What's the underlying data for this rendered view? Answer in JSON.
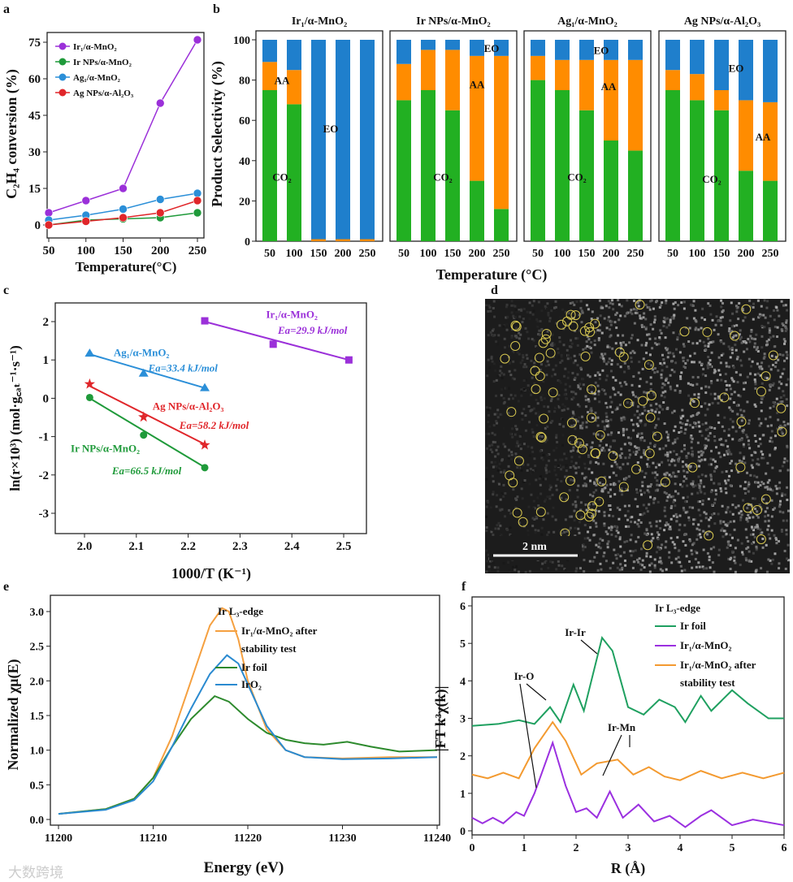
{
  "chart_data": [
    {
      "panel": "a",
      "type": "line",
      "xlabel": "Temperature(°C)",
      "ylabel": "C₂H₄ conversion (%)",
      "xlim": [
        50,
        250
      ],
      "ylim": [
        -4,
        80
      ],
      "xticks": [
        50,
        100,
        150,
        200,
        250
      ],
      "yticks": [
        0,
        15,
        30,
        45,
        60,
        75
      ],
      "legend": "top-left",
      "x": [
        50,
        100,
        150,
        200,
        250
      ],
      "series": [
        {
          "name": "Ir₁/α-MnO₂",
          "color": "#9b30d9",
          "values": [
            5,
            10,
            15,
            50,
            76
          ]
        },
        {
          "name": "Ir NPs/α-MnO₂",
          "color": "#1f9a3a",
          "values": [
            0,
            2,
            2.5,
            3,
            5
          ]
        },
        {
          "name": "Ag₁/α-MnO₂",
          "color": "#2b8fd8",
          "values": [
            2,
            4,
            6.5,
            10.5,
            13
          ]
        },
        {
          "name": "Ag NPs/α-Al₂O₃",
          "color": "#e0262a",
          "values": [
            0,
            1.5,
            3,
            5,
            10
          ]
        }
      ]
    },
    {
      "panel": "b",
      "type": "bar",
      "stacked": true,
      "xlabel": "Temperature (°C)",
      "ylabel": "Product Selectivity (%)",
      "ylim": [
        0,
        100
      ],
      "yticks": [
        0,
        20,
        40,
        60,
        80,
        100
      ],
      "categories": [
        "50",
        "100",
        "150",
        "200",
        "250"
      ],
      "stack_colors": {
        "CO2": "#22b022",
        "AA": "#ff8c00",
        "EO": "#1f7fcc"
      },
      "subplots": [
        {
          "title": "Ir₁/α-MnO₂",
          "CO2": [
            75,
            68,
            0,
            0,
            0
          ],
          "AA": [
            14,
            17,
            1,
            1,
            1
          ],
          "EO": [
            11,
            15,
            99,
            99,
            99
          ],
          "labels": [
            {
              "text": "AA",
              "x": 0.5,
              "y": 80
            },
            {
              "text": "EO",
              "x": 2.5,
              "y": 56
            },
            {
              "text": "CO₂",
              "x": 0.5,
              "y": 32
            }
          ]
        },
        {
          "title": "Ir NPs/α-MnO₂",
          "CO2": [
            70,
            75,
            65,
            30,
            16
          ],
          "AA": [
            18,
            20,
            30,
            62,
            76
          ],
          "EO": [
            12,
            5,
            5,
            8,
            8
          ],
          "labels": [
            {
              "text": "EO",
              "x": 3.6,
              "y": 96
            },
            {
              "text": "AA",
              "x": 3,
              "y": 78
            },
            {
              "text": "CO₂",
              "x": 1.6,
              "y": 32
            }
          ]
        },
        {
          "title": "Ag₁/α-MnO₂",
          "CO2": [
            80,
            75,
            65,
            50,
            45
          ],
          "AA": [
            12,
            15,
            25,
            40,
            45
          ],
          "EO": [
            8,
            10,
            10,
            10,
            10
          ],
          "labels": [
            {
              "text": "EO",
              "x": 2.6,
              "y": 95
            },
            {
              "text": "AA",
              "x": 2.9,
              "y": 77
            },
            {
              "text": "CO₂",
              "x": 1.6,
              "y": 32
            }
          ]
        },
        {
          "title": "Ag NPs/α-Al₂O₃",
          "CO2": [
            75,
            70,
            65,
            35,
            30
          ],
          "AA": [
            10,
            13,
            10,
            35,
            39
          ],
          "EO": [
            15,
            17,
            25,
            30,
            31
          ],
          "labels": [
            {
              "text": "EO",
              "x": 2.6,
              "y": 86
            },
            {
              "text": "AA",
              "x": 3.7,
              "y": 52
            },
            {
              "text": "CO₂",
              "x": 1.6,
              "y": 31
            }
          ]
        }
      ]
    },
    {
      "panel": "c",
      "type": "scatter",
      "xlabel": "1000/T (K⁻¹)",
      "ylabel": "ln(r×10³) (mol·g꜀ₐₜ⁻¹·s⁻¹)",
      "xlim": [
        1.945,
        2.545
      ],
      "ylim": [
        -3.5,
        2.5
      ],
      "xticks": [
        2.0,
        2.1,
        2.2,
        2.3,
        2.4,
        2.5
      ],
      "yticks": [
        -3,
        -2,
        -1,
        0,
        1,
        2
      ],
      "series": [
        {
          "name": "Ir₁/α-MnO₂",
          "ea": "Ea=29.9 kJ/mol",
          "color": "#9b30d9",
          "marker": "square",
          "points": [
            [
              2.232,
              2.02
            ],
            [
              2.364,
              1.41
            ],
            [
              2.51,
              1.0
            ]
          ],
          "fit": [
            [
              2.232,
              2.0
            ],
            [
              2.51,
              1.0
            ]
          ],
          "label_at": [
            2.4,
            2.1
          ],
          "ea_at": [
            2.44,
            1.68
          ]
        },
        {
          "name": "Ag₁/α-MnO₂",
          "ea": "Ea=33.4 kJ/mol",
          "color": "#2b8fd8",
          "marker": "triangle",
          "points": [
            [
              2.01,
              1.17
            ],
            [
              2.114,
              0.65
            ],
            [
              2.232,
              0.27
            ]
          ],
          "fit": [
            [
              2.01,
              1.15
            ],
            [
              2.232,
              0.27
            ]
          ],
          "label_at": [
            2.11,
            1.1
          ],
          "ea_at": [
            2.19,
            0.7
          ]
        },
        {
          "name": "Ag NPs/α-Al₂O₃",
          "ea": "Ea=58.2 kJ/mol",
          "color": "#e0262a",
          "marker": "star",
          "points": [
            [
              2.01,
              0.37
            ],
            [
              2.114,
              -0.49
            ],
            [
              2.232,
              -1.22
            ]
          ],
          "fit": [
            [
              2.01,
              0.32
            ],
            [
              2.232,
              -1.2
            ]
          ],
          "label_at": [
            2.2,
            -0.3
          ],
          "ea_at": [
            2.25,
            -0.8
          ]
        },
        {
          "name": "Ir NPs/α-MnO₂",
          "ea": "Ea=66.5 kJ/mol",
          "color": "#1f9a3a",
          "marker": "circle",
          "points": [
            [
              2.01,
              0.02
            ],
            [
              2.114,
              -0.96
            ],
            [
              2.232,
              -1.81
            ]
          ],
          "fit": [
            [
              2.01,
              0
            ],
            [
              2.232,
              -1.8
            ]
          ],
          "label_at": [
            2.04,
            -1.4
          ],
          "ea_at": [
            2.12,
            -1.98
          ]
        }
      ]
    },
    {
      "panel": "d",
      "type": "image",
      "scale_bar": "2 nm"
    },
    {
      "panel": "e",
      "type": "line",
      "xlabel": "Energy (eV)",
      "ylabel": "Normalized χμ(E)",
      "legend_title": "Ir L₃-edge",
      "xlim": [
        11199,
        11240
      ],
      "ylim": [
        -0.15,
        3.35
      ],
      "xticks": [
        11200,
        11210,
        11220,
        11230,
        11240
      ],
      "yticks": [
        0.0,
        0.5,
        1.0,
        1.5,
        2.0,
        2.5,
        3.0
      ],
      "series": [
        {
          "name": "Ir₁/α-MnO₂ after",
          "name2": "stability test",
          "color": "#f5a040",
          "points": [
            [
              11200,
              0.08
            ],
            [
              11205,
              0.15
            ],
            [
              11208,
              0.3
            ],
            [
              11210,
              0.6
            ],
            [
              11212,
              1.2
            ],
            [
              11214,
              2.0
            ],
            [
              11216,
              2.8
            ],
            [
              11217.3,
              3.05
            ],
            [
              11218,
              3.0
            ],
            [
              11219,
              2.6
            ],
            [
              11220,
              2.0
            ],
            [
              11222,
              1.3
            ],
            [
              11224,
              1.0
            ],
            [
              11226,
              0.9
            ],
            [
              11230,
              0.88
            ],
            [
              11235,
              0.9
            ],
            [
              11240,
              0.9
            ]
          ]
        },
        {
          "name": "Ir foil",
          "color": "#2d8a2d",
          "points": [
            [
              11200,
              0.08
            ],
            [
              11205,
              0.15
            ],
            [
              11208,
              0.3
            ],
            [
              11210,
              0.6
            ],
            [
              11212,
              1.05
            ],
            [
              11214,
              1.45
            ],
            [
              11216.5,
              1.78
            ],
            [
              11218,
              1.7
            ],
            [
              11220,
              1.45
            ],
            [
              11222,
              1.25
            ],
            [
              11224,
              1.15
            ],
            [
              11226,
              1.1
            ],
            [
              11228,
              1.08
            ],
            [
              11230.5,
              1.12
            ],
            [
              11233,
              1.05
            ],
            [
              11236,
              0.98
            ],
            [
              11240,
              1.0
            ]
          ]
        },
        {
          "name": "IrO₂",
          "color": "#2a8ad0",
          "points": [
            [
              11200,
              0.08
            ],
            [
              11205,
              0.14
            ],
            [
              11208,
              0.28
            ],
            [
              11210,
              0.55
            ],
            [
              11212,
              1.05
            ],
            [
              11214,
              1.6
            ],
            [
              11216,
              2.1
            ],
            [
              11217.8,
              2.37
            ],
            [
              11219,
              2.25
            ],
            [
              11220,
              1.95
            ],
            [
              11222,
              1.35
            ],
            [
              11224,
              1.0
            ],
            [
              11226,
              0.9
            ],
            [
              11230,
              0.87
            ],
            [
              11235,
              0.88
            ],
            [
              11240,
              0.9
            ]
          ]
        }
      ]
    },
    {
      "panel": "f",
      "type": "line",
      "xlabel": "R (Å)",
      "ylabel": "|FT k³χ(k)|",
      "legend_title": "Ir L₃-edge",
      "xlim": [
        0,
        6
      ],
      "ylim": [
        -0.05,
        6.05
      ],
      "xticks": [
        0,
        1,
        2,
        3,
        4,
        5,
        6
      ],
      "yticks": [
        0,
        1,
        2,
        3,
        4,
        5,
        6
      ],
      "annotations": [
        "Ir-Ir",
        "Ir-O",
        "Ir-Mn"
      ],
      "series": [
        {
          "name": "Ir foil",
          "color": "#1fa060",
          "points": [
            [
              0,
              2.8
            ],
            [
              0.5,
              2.85
            ],
            [
              0.9,
              2.95
            ],
            [
              1.2,
              2.85
            ],
            [
              1.5,
              3.3
            ],
            [
              1.7,
              2.9
            ],
            [
              1.95,
              3.9
            ],
            [
              2.15,
              3.2
            ],
            [
              2.5,
              5.15
            ],
            [
              2.7,
              4.8
            ],
            [
              3.0,
              3.3
            ],
            [
              3.3,
              3.1
            ],
            [
              3.6,
              3.5
            ],
            [
              3.9,
              3.3
            ],
            [
              4.1,
              2.9
            ],
            [
              4.4,
              3.6
            ],
            [
              4.6,
              3.2
            ],
            [
              5.0,
              3.75
            ],
            [
              5.3,
              3.4
            ],
            [
              5.7,
              3.0
            ],
            [
              6,
              3.0
            ]
          ]
        },
        {
          "name": "Ir₁/α-MnO₂",
          "color": "#9b30e0",
          "points": [
            [
              0,
              0.35
            ],
            [
              0.2,
              0.2
            ],
            [
              0.4,
              0.35
            ],
            [
              0.6,
              0.2
            ],
            [
              0.85,
              0.5
            ],
            [
              1.0,
              0.4
            ],
            [
              1.2,
              1.0
            ],
            [
              1.55,
              2.35
            ],
            [
              1.8,
              1.2
            ],
            [
              2.0,
              0.5
            ],
            [
              2.2,
              0.6
            ],
            [
              2.4,
              0.35
            ],
            [
              2.65,
              1.05
            ],
            [
              2.9,
              0.35
            ],
            [
              3.2,
              0.7
            ],
            [
              3.5,
              0.25
            ],
            [
              3.8,
              0.4
            ],
            [
              4.1,
              0.1
            ],
            [
              4.4,
              0.4
            ],
            [
              4.6,
              0.55
            ],
            [
              5.0,
              0.15
            ],
            [
              5.4,
              0.3
            ],
            [
              6,
              0.15
            ]
          ]
        },
        {
          "name": "Ir₁/α-MnO₂ after",
          "name2": "stability test",
          "color": "#f39a30",
          "points": [
            [
              0,
              1.5
            ],
            [
              0.3,
              1.4
            ],
            [
              0.6,
              1.55
            ],
            [
              0.9,
              1.4
            ],
            [
              1.2,
              2.2
            ],
            [
              1.55,
              2.9
            ],
            [
              1.8,
              2.4
            ],
            [
              2.1,
              1.5
            ],
            [
              2.4,
              1.8
            ],
            [
              2.8,
              1.9
            ],
            [
              3.1,
              1.5
            ],
            [
              3.4,
              1.7
            ],
            [
              3.7,
              1.45
            ],
            [
              4.0,
              1.35
            ],
            [
              4.4,
              1.6
            ],
            [
              4.8,
              1.4
            ],
            [
              5.2,
              1.55
            ],
            [
              5.6,
              1.4
            ],
            [
              6,
              1.55
            ]
          ]
        }
      ]
    }
  ],
  "panel_letters": [
    "a",
    "b",
    "c",
    "d",
    "e",
    "f"
  ],
  "watermark": "大数跨境"
}
